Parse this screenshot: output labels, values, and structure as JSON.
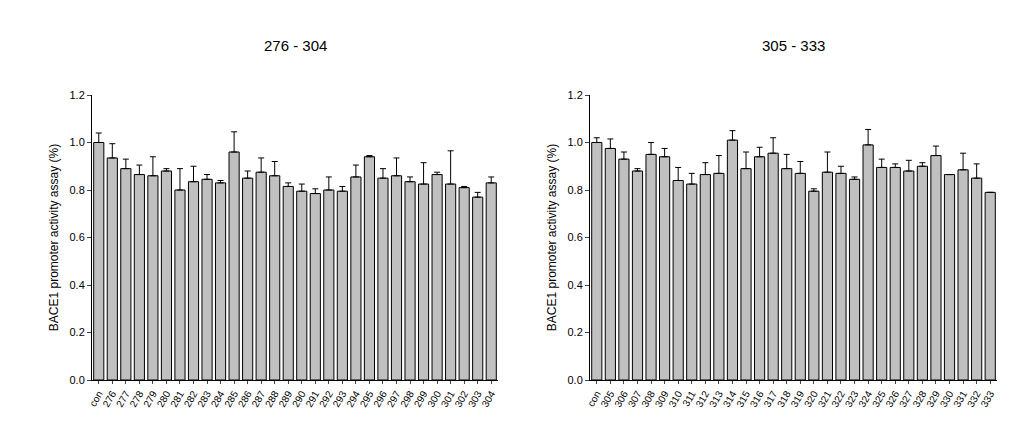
{
  "chart_data": [
    {
      "type": "bar",
      "title": "276 - 304",
      "y_label": "BACE1 promoter activity assay (%)",
      "categories": [
        "con",
        "276",
        "277",
        "278",
        "279",
        "280",
        "281",
        "282",
        "283",
        "284",
        "285",
        "286",
        "287",
        "288",
        "289",
        "290",
        "291",
        "292",
        "293",
        "294",
        "295",
        "296",
        "297",
        "298",
        "299",
        "300",
        "301",
        "302",
        "303",
        "304"
      ],
      "values": [
        1.0,
        0.935,
        0.89,
        0.865,
        0.86,
        0.88,
        0.8,
        0.835,
        0.845,
        0.83,
        0.96,
        0.85,
        0.875,
        0.86,
        0.815,
        0.795,
        0.785,
        0.8,
        0.795,
        0.855,
        0.94,
        0.85,
        0.86,
        0.835,
        0.825,
        0.865,
        0.825,
        0.81,
        0.77,
        0.83
      ],
      "errors": [
        0.04,
        0.06,
        0.04,
        0.04,
        0.08,
        0.01,
        0.09,
        0.065,
        0.02,
        0.01,
        0.085,
        0.03,
        0.06,
        0.06,
        0.015,
        0.03,
        0.02,
        0.055,
        0.02,
        0.05,
        0.005,
        0.04,
        0.075,
        0.02,
        0.09,
        0.01,
        0.14,
        0.005,
        0.02,
        0.025
      ],
      "color": "#c0c0c0",
      "ylim": [
        0,
        1.2
      ],
      "yticks": [
        {
          "value": 0,
          "label": "0.0"
        },
        0.2,
        0.4,
        0.6,
        0.8,
        {
          "value": 1,
          "label": "1.0"
        },
        1.2
      ],
      "grid": false
    },
    {
      "type": "bar",
      "title": "305 - 333",
      "y_label": "BACE1 promoter activity assay (%)",
      "categories": [
        "con",
        "305",
        "306",
        "307",
        "308",
        "309",
        "310",
        "311",
        "312",
        "313",
        "314",
        "315",
        "316",
        "317",
        "318",
        "319",
        "320",
        "321",
        "322",
        "323",
        "324",
        "325",
        "326",
        "327",
        "328",
        "329",
        "330",
        "331",
        "332",
        "333"
      ],
      "values": [
        1.0,
        0.975,
        0.93,
        0.88,
        0.95,
        0.94,
        0.84,
        0.825,
        0.865,
        0.87,
        1.01,
        0.89,
        0.94,
        0.955,
        0.89,
        0.87,
        0.795,
        0.875,
        0.87,
        0.845,
        0.99,
        0.895,
        0.895,
        0.88,
        0.9,
        0.945,
        0.865,
        0.885,
        0.85,
        0.79
      ],
      "errors": [
        0.02,
        0.04,
        0.03,
        0.01,
        0.05,
        0.035,
        0.055,
        0.045,
        0.05,
        0.075,
        0.04,
        0.07,
        0.04,
        0.065,
        0.06,
        0.05,
        0.01,
        0.085,
        0.03,
        0.01,
        0.065,
        0.035,
        0.015,
        0.045,
        0.015,
        0.04,
        0,
        0.07,
        0.06,
        0
      ],
      "color": "#c0c0c0",
      "ylim": [
        0,
        1.2
      ],
      "yticks": [
        {
          "value": 0,
          "label": "0.0"
        },
        0.2,
        0.4,
        0.6,
        0.8,
        {
          "value": 1,
          "label": "1.0"
        },
        1.2
      ],
      "grid": false
    }
  ]
}
